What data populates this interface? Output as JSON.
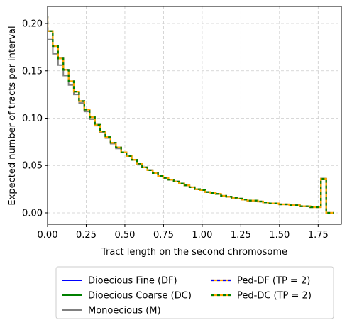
{
  "chart_data": {
    "type": "line",
    "step": true,
    "xlabel": "Tract length on the second chromosome",
    "ylabel": "Expected number of tracts per interval",
    "xlim": [
      0.0,
      1.9
    ],
    "ylim": [
      -0.012,
      0.218
    ],
    "xticks": [
      0.0,
      0.25,
      0.5,
      0.75,
      1.0,
      1.25,
      1.5,
      1.75
    ],
    "xtick_labels": [
      "0.00",
      "0.25",
      "0.50",
      "0.75",
      "1.00",
      "1.25",
      "1.50",
      "1.75"
    ],
    "yticks": [
      0.0,
      0.05,
      0.1,
      0.15,
      0.2
    ],
    "ytick_labels": [
      "0.00",
      "0.05",
      "0.10",
      "0.15",
      "0.20"
    ],
    "grid": true,
    "legend_position": "below plot, two columns",
    "bin_edges": [
      0.0,
      0.034,
      0.068,
      0.102,
      0.136,
      0.17,
      0.204,
      0.238,
      0.272,
      0.306,
      0.34,
      0.374,
      0.408,
      0.442,
      0.476,
      0.51,
      0.544,
      0.578,
      0.612,
      0.646,
      0.68,
      0.714,
      0.748,
      0.782,
      0.816,
      0.85,
      0.884,
      0.918,
      0.952,
      0.986,
      1.02,
      1.054,
      1.088,
      1.122,
      1.156,
      1.19,
      1.224,
      1.258,
      1.292,
      1.326,
      1.36,
      1.394,
      1.428,
      1.462,
      1.496,
      1.53,
      1.564,
      1.598,
      1.632,
      1.666,
      1.7,
      1.734,
      1.768,
      1.802,
      1.85
    ],
    "series": [
      {
        "name": "Dioecious Fine (DF)",
        "color": "#0000ff",
        "style": "solid",
        "values": [
          0.192,
          0.176,
          0.163,
          0.151,
          0.139,
          0.128,
          0.118,
          0.109,
          0.101,
          0.093,
          0.086,
          0.08,
          0.074,
          0.069,
          0.064,
          0.06,
          0.056,
          0.052,
          0.048,
          0.045,
          0.042,
          0.039,
          0.037,
          0.035,
          0.033,
          0.031,
          0.029,
          0.027,
          0.025,
          0.024,
          0.022,
          0.021,
          0.02,
          0.018,
          0.017,
          0.016,
          0.015,
          0.014,
          0.013,
          0.013,
          0.012,
          0.011,
          0.01,
          0.01,
          0.009,
          0.009,
          0.008,
          0.008,
          0.007,
          0.007,
          0.006,
          0.006,
          0.036,
          0.0
        ]
      },
      {
        "name": "Dioecious Coarse (DC)",
        "color": "#008000",
        "style": "solid",
        "values": [
          0.192,
          0.176,
          0.163,
          0.151,
          0.139,
          0.128,
          0.118,
          0.109,
          0.101,
          0.093,
          0.086,
          0.08,
          0.074,
          0.069,
          0.064,
          0.06,
          0.056,
          0.052,
          0.048,
          0.045,
          0.042,
          0.039,
          0.037,
          0.035,
          0.033,
          0.031,
          0.029,
          0.027,
          0.025,
          0.024,
          0.022,
          0.021,
          0.02,
          0.018,
          0.017,
          0.016,
          0.015,
          0.014,
          0.013,
          0.013,
          0.012,
          0.011,
          0.01,
          0.01,
          0.009,
          0.009,
          0.008,
          0.008,
          0.007,
          0.007,
          0.006,
          0.006,
          0.036,
          0.0
        ]
      },
      {
        "name": "Monoecious (M)",
        "color": "#808080",
        "style": "solid",
        "values": [
          0.183,
          0.168,
          0.156,
          0.145,
          0.135,
          0.125,
          0.116,
          0.107,
          0.099,
          0.092,
          0.085,
          0.079,
          0.073,
          0.068,
          0.064,
          0.06,
          0.056,
          0.052,
          0.048,
          0.045,
          0.042,
          0.039,
          0.037,
          0.035,
          0.033,
          0.031,
          0.029,
          0.027,
          0.025,
          0.024,
          0.022,
          0.021,
          0.02,
          0.018,
          0.017,
          0.016,
          0.015,
          0.014,
          0.013,
          0.013,
          0.012,
          0.011,
          0.01,
          0.01,
          0.009,
          0.009,
          0.008,
          0.008,
          0.007,
          0.007,
          0.006,
          0.006,
          0.036,
          0.0
        ]
      },
      {
        "name": "Ped-DF (TP = 2)",
        "color": "#ffa500",
        "dash_color": "#0000ff",
        "style": "dashed",
        "values": [
          0.192,
          0.176,
          0.163,
          0.151,
          0.139,
          0.128,
          0.118,
          0.109,
          0.101,
          0.093,
          0.086,
          0.08,
          0.074,
          0.069,
          0.064,
          0.06,
          0.056,
          0.052,
          0.048,
          0.045,
          0.042,
          0.039,
          0.037,
          0.035,
          0.033,
          0.031,
          0.029,
          0.027,
          0.025,
          0.024,
          0.022,
          0.021,
          0.02,
          0.018,
          0.017,
          0.016,
          0.015,
          0.014,
          0.013,
          0.013,
          0.012,
          0.011,
          0.01,
          0.01,
          0.009,
          0.009,
          0.008,
          0.008,
          0.007,
          0.007,
          0.006,
          0.006,
          0.036,
          0.0
        ]
      },
      {
        "name": "Ped-DC (TP = 2)",
        "color": "#ffa500",
        "dash_color": "#008000",
        "style": "dashed",
        "values": [
          0.192,
          0.176,
          0.163,
          0.151,
          0.139,
          0.128,
          0.118,
          0.109,
          0.101,
          0.093,
          0.086,
          0.08,
          0.074,
          0.069,
          0.064,
          0.06,
          0.056,
          0.052,
          0.048,
          0.045,
          0.042,
          0.039,
          0.037,
          0.035,
          0.033,
          0.031,
          0.029,
          0.027,
          0.025,
          0.024,
          0.022,
          0.021,
          0.02,
          0.018,
          0.017,
          0.016,
          0.015,
          0.014,
          0.013,
          0.013,
          0.012,
          0.011,
          0.01,
          0.01,
          0.009,
          0.009,
          0.008,
          0.008,
          0.007,
          0.007,
          0.006,
          0.006,
          0.036,
          0.0
        ]
      }
    ]
  }
}
